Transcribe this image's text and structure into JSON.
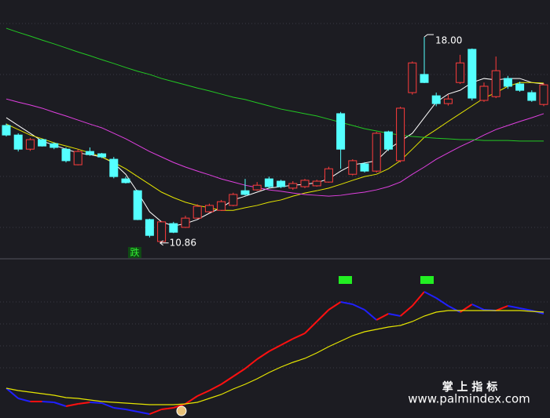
{
  "chart_data": [
    {
      "type": "candlestick",
      "ylim": [
        10.31,
        19.28
      ],
      "up_color": "#ff3c3c",
      "down_color": "#54ffff",
      "candles": {
        "open": [
          14.93,
          14.6,
          14.11,
          14.44,
          14.3,
          14.11,
          13.57,
          14.03,
          13.95,
          13.76,
          13.08,
          12.67,
          11.67,
          10.91,
          11.53,
          11.4,
          11.72,
          11.94,
          11.99,
          12.16,
          12.67,
          12.7,
          13.08,
          13.0,
          12.76,
          12.81,
          12.84,
          12.97,
          15.34,
          13.24,
          13.6,
          13.35,
          14.71,
          13.71,
          16.07,
          16.7,
          15.96,
          15.69,
          16.42,
          17.57,
          15.8,
          15.93,
          16.56,
          16.37,
          16.07,
          15.66
        ],
        "high": [
          15.0,
          14.66,
          14.5,
          14.47,
          14.35,
          14.17,
          14.11,
          14.17,
          13.98,
          13.84,
          13.16,
          12.7,
          11.7,
          11.62,
          11.59,
          11.8,
          12.2,
          12.22,
          12.35,
          12.6,
          13.08,
          12.97,
          13.16,
          13.05,
          13.0,
          13.08,
          13.05,
          13.5,
          15.4,
          13.76,
          13.66,
          14.71,
          14.75,
          15.58,
          17.15,
          18.0,
          16.07,
          16.0,
          17.38,
          17.6,
          16.42,
          17.32,
          16.65,
          16.45,
          16.15,
          16.4
        ],
        "low": [
          14.55,
          14.03,
          14.05,
          14.2,
          14.11,
          13.65,
          13.55,
          13.88,
          13.8,
          13.1,
          12.92,
          11.65,
          11.05,
          10.86,
          11.2,
          11.38,
          11.7,
          11.9,
          11.97,
          12.13,
          12.5,
          12.67,
          12.76,
          12.76,
          12.7,
          12.76,
          12.81,
          12.95,
          13.43,
          13.2,
          13.3,
          13.3,
          14.05,
          13.65,
          16.0,
          16.4,
          15.6,
          15.62,
          16.37,
          15.8,
          15.75,
          15.88,
          16.2,
          16.1,
          15.75,
          15.6
        ],
        "close": [
          14.6,
          14.11,
          14.44,
          14.22,
          14.17,
          13.71,
          14.03,
          13.92,
          13.84,
          13.16,
          12.95,
          11.67,
          11.12,
          11.59,
          11.23,
          11.72,
          12.13,
          12.16,
          12.29,
          12.54,
          12.54,
          12.86,
          12.81,
          12.81,
          12.92,
          13.03,
          13.0,
          13.43,
          14.11,
          13.71,
          13.35,
          14.66,
          14.11,
          15.53,
          17.1,
          16.42,
          15.69,
          15.85,
          17.1,
          15.88,
          16.29,
          16.83,
          16.29,
          16.15,
          15.8,
          16.34
        ]
      },
      "series": [
        {
          "color": "#ffffff",
          "values": [
            15.2,
            14.93,
            14.66,
            14.39,
            14.25,
            14.11,
            13.98,
            13.92,
            13.84,
            13.63,
            13.24,
            12.62,
            11.94,
            11.59,
            11.45,
            11.53,
            11.67,
            11.89,
            12.08,
            12.35,
            12.48,
            12.62,
            12.76,
            12.81,
            12.86,
            12.89,
            12.95,
            13.08,
            13.35,
            13.57,
            13.63,
            13.71,
            14.11,
            14.39,
            14.66,
            15.2,
            15.74,
            16.02,
            16.15,
            16.42,
            16.56,
            16.51,
            16.56,
            16.56,
            16.42,
            16.37
          ]
        },
        {
          "color": "#e6e600",
          "values": [
            14.98,
            14.79,
            14.6,
            14.47,
            14.33,
            14.22,
            14.11,
            13.98,
            13.84,
            13.65,
            13.43,
            13.16,
            12.89,
            12.62,
            12.43,
            12.27,
            12.16,
            12.08,
            11.99,
            11.99,
            12.08,
            12.16,
            12.27,
            12.35,
            12.48,
            12.59,
            12.67,
            12.76,
            12.89,
            13.03,
            13.16,
            13.24,
            13.43,
            13.71,
            14.11,
            14.52,
            14.79,
            15.07,
            15.34,
            15.61,
            15.88,
            16.07,
            16.29,
            16.42,
            16.42,
            16.4
          ]
        },
        {
          "color": "#e040e0",
          "values": [
            15.85,
            15.74,
            15.64,
            15.53,
            15.39,
            15.26,
            15.12,
            14.98,
            14.85,
            14.66,
            14.47,
            14.25,
            14.03,
            13.84,
            13.65,
            13.49,
            13.35,
            13.22,
            13.08,
            12.97,
            12.86,
            12.78,
            12.7,
            12.65,
            12.59,
            12.54,
            12.51,
            12.48,
            12.51,
            12.57,
            12.62,
            12.7,
            12.81,
            12.97,
            13.24,
            13.49,
            13.76,
            13.98,
            14.2,
            14.39,
            14.6,
            14.79,
            14.93,
            15.07,
            15.2,
            15.34
          ]
        },
        {
          "color": "#22c822",
          "values": [
            18.3,
            18.16,
            18.03,
            17.89,
            17.76,
            17.62,
            17.48,
            17.35,
            17.21,
            17.08,
            16.94,
            16.81,
            16.7,
            16.56,
            16.45,
            16.34,
            16.23,
            16.13,
            16.02,
            15.91,
            15.83,
            15.72,
            15.61,
            15.5,
            15.42,
            15.34,
            15.26,
            15.15,
            15.04,
            14.93,
            14.82,
            14.74,
            14.66,
            14.6,
            14.55,
            14.52,
            14.49,
            14.47,
            14.44,
            14.44,
            14.41,
            14.41,
            14.41,
            14.39,
            14.39,
            14.39
          ]
        }
      ],
      "annotations": [
        {
          "text": "18.00",
          "value": 18.0
        },
        {
          "text": "10.86",
          "value": 10.86
        }
      ],
      "signal_label": "跌"
    },
    {
      "type": "line",
      "ylim": [
        -1.5,
        100
      ],
      "series": [
        {
          "color_up": "#ff1010",
          "color_down": "#2020ff",
          "values": [
            17.5,
            11,
            9,
            9,
            8.5,
            6,
            7.5,
            8.5,
            8,
            5,
            4,
            2.5,
            1,
            4,
            5,
            7.5,
            12.5,
            16,
            20,
            25,
            30,
            36,
            41,
            45,
            49,
            52.5,
            60,
            67.5,
            72.5,
            71,
            67.5,
            61,
            65,
            63.5,
            70,
            79,
            75,
            70,
            66,
            71,
            67.5,
            67,
            70,
            68.5,
            67,
            65
          ]
        },
        {
          "color": "#e6e600",
          "values": [
            17.5,
            16,
            15,
            14,
            13,
            11.5,
            11,
            10,
            9,
            8.5,
            8,
            7.5,
            7,
            7,
            7,
            7.5,
            8.5,
            11,
            13.5,
            17,
            20,
            23.5,
            27.5,
            31,
            34,
            36.5,
            40,
            44,
            47.5,
            51,
            53.5,
            55,
            56.5,
            57.5,
            60,
            63.5,
            66,
            67,
            67,
            67,
            67,
            67,
            67,
            67,
            66.5,
            66
          ]
        }
      ]
    }
  ],
  "watermark": {
    "title": "掌 上 指 标",
    "url": "www.palmindex.com"
  }
}
